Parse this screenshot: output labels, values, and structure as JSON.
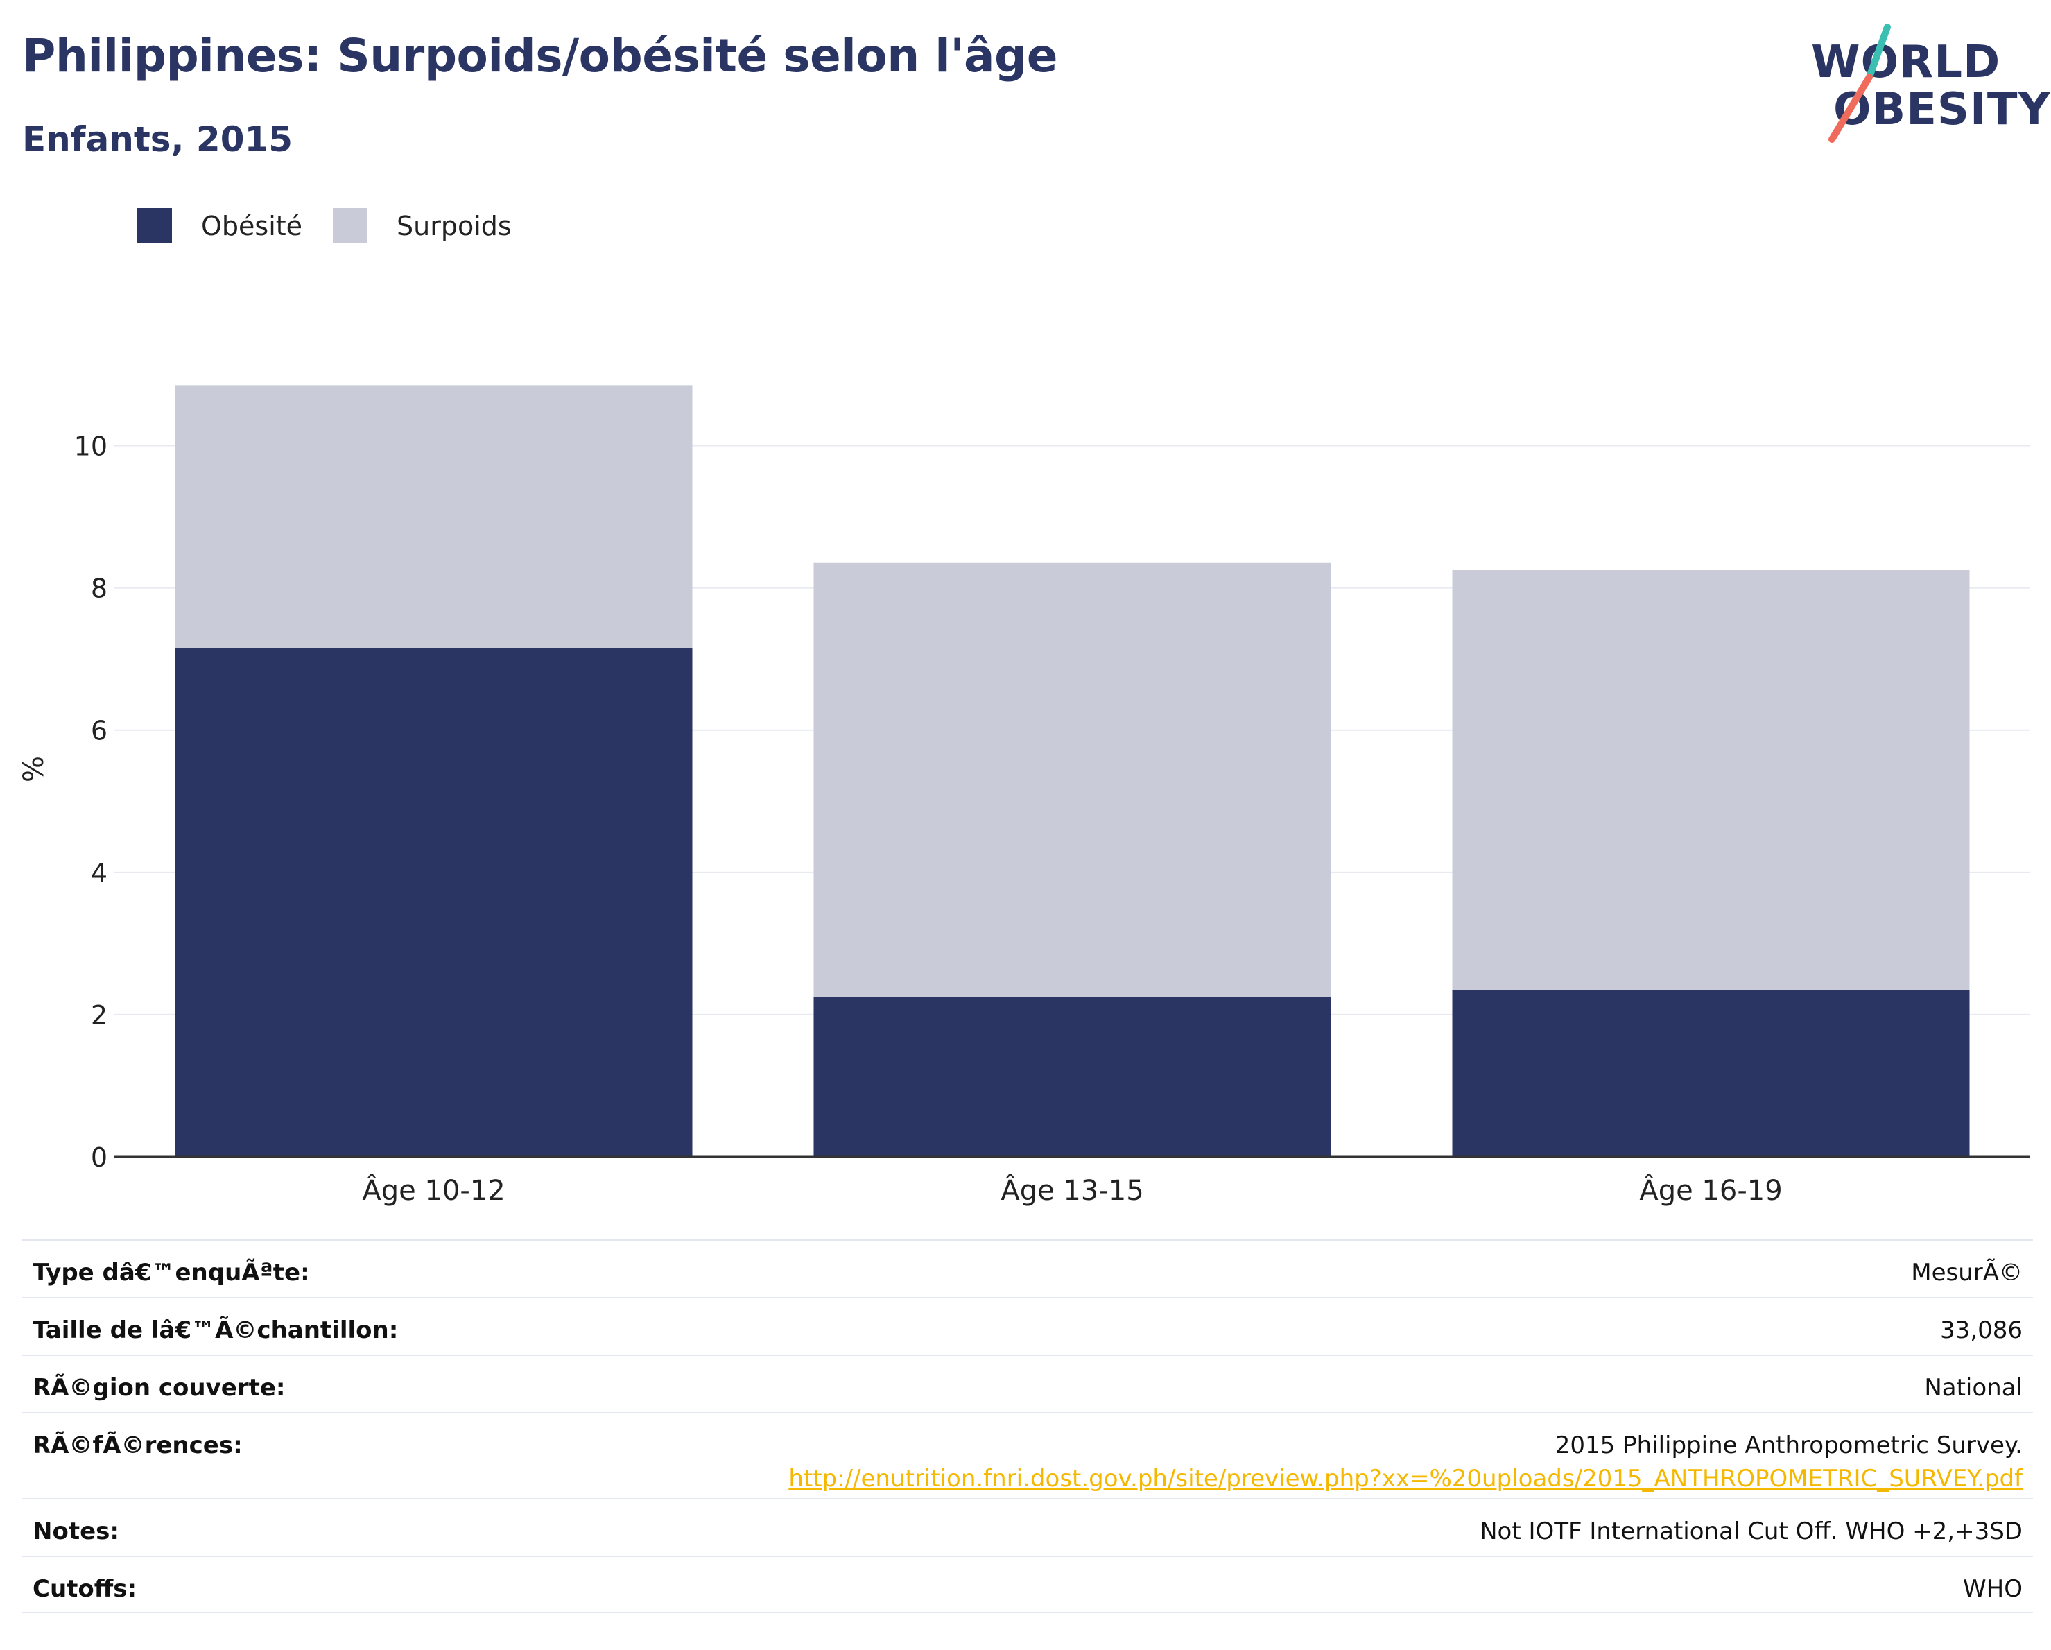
{
  "header": {
    "title": "Philippines: Surpoids/obésité selon l'âge",
    "subtitle": "Enfants, 2015"
  },
  "logo": {
    "line1": "WORLD",
    "line2": "OBESITY",
    "accent_teal": "#3bbfb2",
    "accent_coral": "#ef6b5b"
  },
  "chart_data": {
    "type": "bar",
    "stacked": true,
    "categories": [
      "Âge 10-12",
      "Âge 13-15",
      "Âge 16-19"
    ],
    "series": [
      {
        "name": "Obésité",
        "values": [
          7.15,
          2.25,
          2.35
        ],
        "color": "#2a3563"
      },
      {
        "name": "Surpoids",
        "values": [
          3.7,
          6.1,
          5.9
        ],
        "color": "#c9ccd8"
      }
    ],
    "ylabel": "%",
    "ylim": [
      0,
      11
    ],
    "yticks": [
      0,
      2,
      4,
      6,
      8,
      10
    ],
    "grid": true,
    "legend_position": "top-left"
  },
  "info_table": [
    {
      "label": "Type dâ€™enquÃªte:",
      "value": "MesurÃ©"
    },
    {
      "label": "Taille de lâ€™Ã©chantillon:",
      "value": "33,086"
    },
    {
      "label": "RÃ©gion couverte:",
      "value": "National"
    },
    {
      "label": "RÃ©fÃ©rences:",
      "value": "2015 Philippine Anthropometric Survey.",
      "link": "http://enutrition.fnri.dost.gov.ph/site/preview.php?xx=%20uploads/2015_ANTHROPOMETRIC_SURVEY.pdf"
    },
    {
      "label": "Notes:",
      "value": "Not IOTF International Cut Off. WHO +2,+3SD"
    },
    {
      "label": "Cutoffs:",
      "value": "WHO"
    }
  ]
}
